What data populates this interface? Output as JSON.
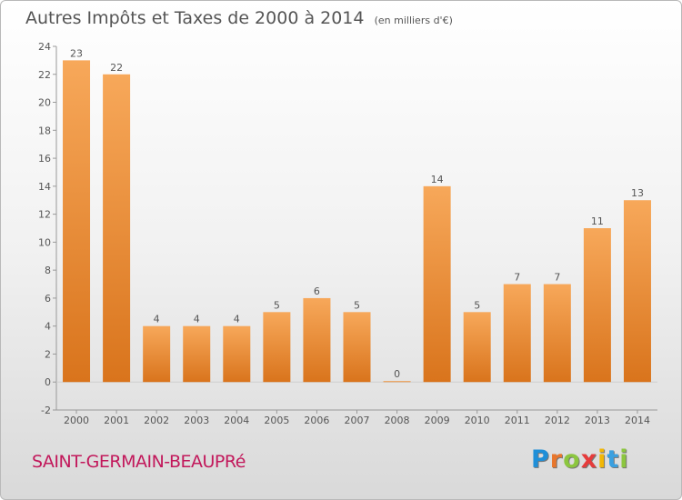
{
  "title": "Autres Impôts et Taxes de 2000 à 2014",
  "unit_note": "(en milliers d'€)",
  "commune": "SAINT-GERMAIN-BEAUPRé",
  "logo": {
    "text": "Proxiti",
    "letter_colors": [
      "#1f8fd8",
      "#e8762c",
      "#8cc63f",
      "#e63b3b",
      "#f2b705",
      "#3aa0e0",
      "#8cc63f"
    ]
  },
  "colors": {
    "bar_top": "#f7a85a",
    "bar_bottom": "#d9741c",
    "axis": "#999999",
    "text": "#555555"
  },
  "chart_data": {
    "type": "bar",
    "title": "Autres Impôts et Taxes de 2000 à 2014",
    "subtitle": "(en milliers d'€)",
    "xlabel": "",
    "ylabel": "",
    "categories": [
      "2000",
      "2001",
      "2002",
      "2003",
      "2004",
      "2005",
      "2006",
      "2007",
      "2008",
      "2009",
      "2010",
      "2011",
      "2012",
      "2013",
      "2014"
    ],
    "values": [
      23,
      22,
      4,
      4,
      4,
      5,
      6,
      5,
      0,
      14,
      5,
      7,
      7,
      11,
      13
    ],
    "ylim": [
      -2,
      24
    ],
    "yticks": [
      -2,
      0,
      2,
      4,
      6,
      8,
      10,
      12,
      14,
      16,
      18,
      20,
      22,
      24
    ],
    "grid": false,
    "legend": "none"
  }
}
